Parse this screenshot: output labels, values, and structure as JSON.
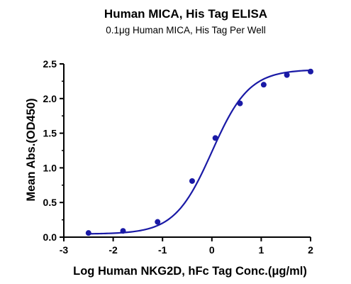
{
  "chart_data": {
    "type": "line",
    "title": "Human MICA, His Tag ELISA",
    "subtitle": "0.1μg Human MICA, His Tag Per Well",
    "xlabel": "Log Human NKG2D, hFc Tag Conc.(μg/ml)",
    "ylabel": "Mean Abs.(OD450)",
    "xlim": [
      -3,
      2
    ],
    "ylim": [
      0,
      2.5
    ],
    "x_ticks": [
      "-3",
      "-2",
      "-1",
      "0",
      "1",
      "2"
    ],
    "y_ticks": [
      "0.0",
      "0.5",
      "1.0",
      "1.5",
      "2.0",
      "2.5"
    ],
    "grid": false,
    "legend": "none",
    "series": [
      {
        "points": [
          {
            "x": -2.5,
            "y": 0.06
          },
          {
            "x": -1.8,
            "y": 0.09
          },
          {
            "x": -1.1,
            "y": 0.22
          },
          {
            "x": -0.4,
            "y": 0.81
          },
          {
            "x": 0.07,
            "y": 1.43
          },
          {
            "x": 0.57,
            "y": 1.93
          },
          {
            "x": 1.05,
            "y": 2.2
          },
          {
            "x": 1.52,
            "y": 2.34
          },
          {
            "x": 2.0,
            "y": 2.39
          }
        ],
        "fit": {
          "model": "4PL",
          "bottom": 0.045,
          "top": 2.42,
          "logEC50": 0.0,
          "hill": 1.15
        },
        "color": "#1a1aa6"
      }
    ]
  }
}
